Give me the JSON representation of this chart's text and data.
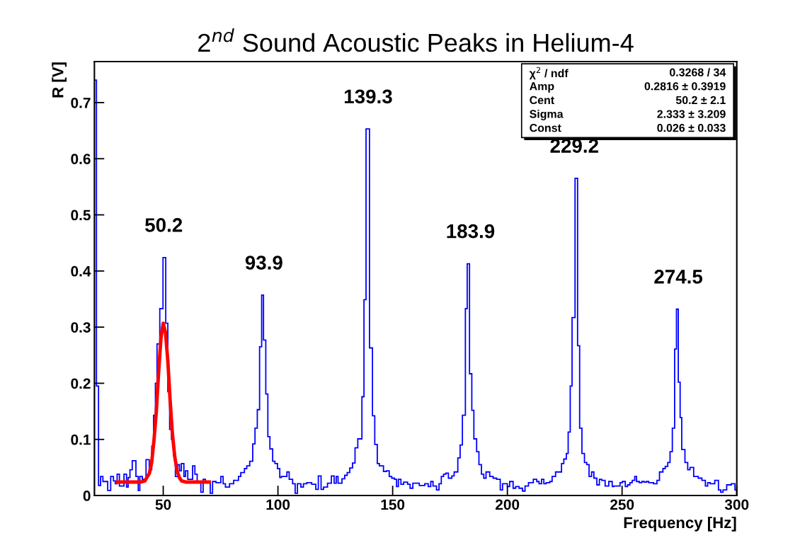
{
  "chart_data": {
    "type": "histogram",
    "title": "2$^{nd}$ Sound Acoustic Peaks in Helium-4",
    "xlabel": "Frequency [Hz]",
    "ylabel": "R [V]",
    "xlim": [
      20,
      300
    ],
    "ylim": [
      0,
      0.773
    ],
    "xticks": [
      50,
      100,
      150,
      200,
      250,
      300
    ],
    "yticks": [
      0,
      0.1,
      0.2,
      0.3,
      0.4,
      0.5,
      0.6,
      0.7
    ],
    "grid": false,
    "legend": false,
    "series": [
      {
        "color": "#0000ff",
        "bins": [
          20,
          20.9,
          21.8,
          22.7,
          23.7,
          25.8,
          27.1,
          28.3,
          29.1,
          29.9,
          30.9,
          32.9,
          34.0,
          34.7,
          35.5,
          36.5,
          38.1,
          39.1,
          39.8,
          40.9,
          42.5,
          43.9,
          45.0,
          45.8,
          46.6,
          47.3,
          48.5,
          49.9,
          51.1,
          52.0,
          52.8,
          53.6,
          54.5,
          55.3,
          56.3,
          57.1,
          57.9,
          59.0,
          59.7,
          60.7,
          62.8,
          63.8,
          64.8,
          66.4,
          67.4,
          68.4,
          70.5,
          71.5,
          73.0,
          75.1,
          76.1,
          77.1,
          78.9,
          80.7,
          82.8,
          83.8,
          85.4,
          86.4,
          87.7,
          89.0,
          90.0,
          91.0,
          92.0,
          92.9,
          93.7,
          94.7,
          95.6,
          96.5,
          97.7,
          98.7,
          99.8,
          100.8,
          101.5,
          103.9,
          104.9,
          106.4,
          107.5,
          108.5,
          110.0,
          111.1,
          112.6,
          114.7,
          116.5,
          117.6,
          118.8,
          119.9,
          121.6,
          123.3,
          124.5,
          125.4,
          126.2,
          127.9,
          129.1,
          130.2,
          131.3,
          132.5,
          133.6,
          134.8,
          136.6,
          137.5,
          138.4,
          139.9,
          141.2,
          142.2,
          143.3,
          144.2,
          146.0,
          147.3,
          148.5,
          149.6,
          150.8,
          151.7,
          152.5,
          153.6,
          154.8,
          156.5,
          157.6,
          158.8,
          159.9,
          161.6,
          164.0,
          165.5,
          166.6,
          167.6,
          169.1,
          170.2,
          171.2,
          172.2,
          173.2,
          174.3,
          175.8,
          176.8,
          178.4,
          179.4,
          180.4,
          181.7,
          182.5,
          183.5,
          184.5,
          185.4,
          186.6,
          187.6,
          188.7,
          189.7,
          190.7,
          192.3,
          193.8,
          195.3,
          196.9,
          197.9,
          200.0,
          201.0,
          202.5,
          203.6,
          205.1,
          206.6,
          207.7,
          209.2,
          211.3,
          212.8,
          213.8,
          214.9,
          215.9,
          216.9,
          218.5,
          219.5,
          221.0,
          223.6,
          224.6,
          225.7,
          226.5,
          227.4,
          228.2,
          229.5,
          230.6,
          231.5,
          232.5,
          233.6,
          234.6,
          235.6,
          236.7,
          237.7,
          239.0,
          240.1,
          241.1,
          242.6,
          244.2,
          245.7,
          246.4,
          249.1,
          250.1,
          251.4,
          252.4,
          253.4,
          254.4,
          255.5,
          256.3,
          257.5,
          258.6,
          259.6,
          260.6,
          261.6,
          263.7,
          265.2,
          266.3,
          267.8,
          268.8,
          269.9,
          270.9,
          271.9,
          272.9,
          273.7,
          274.5,
          275.3,
          276.0,
          277.4,
          278.6,
          279.6,
          281.2,
          283.2,
          284.8,
          286.3,
          287.3,
          288.4,
          290.4,
          292.0,
          293.0,
          294.0,
          295.6,
          297.6,
          299.2,
          300
        ],
        "values": [
          0.74,
          0.195,
          0.018,
          0.034,
          0.025,
          0.009,
          0.034,
          0.026,
          0.021,
          0.038,
          0.017,
          0.038,
          0.015,
          0.032,
          0.046,
          0.062,
          0.034,
          0.009,
          0.034,
          0.029,
          0.064,
          0.046,
          0.088,
          0.143,
          0.2,
          0.27,
          0.333,
          0.424,
          0.307,
          0.185,
          0.118,
          0.1,
          0.071,
          0.034,
          0.055,
          0.044,
          0.057,
          0.034,
          0.044,
          0.029,
          0.053,
          0.038,
          0.025,
          0.006,
          0.029,
          0.025,
          0.004,
          0.025,
          0.023,
          0.034,
          0.021,
          0.015,
          0.021,
          0.027,
          0.034,
          0.041,
          0.048,
          0.053,
          0.061,
          0.092,
          0.12,
          0.153,
          0.265,
          0.357,
          0.277,
          0.181,
          0.105,
          0.083,
          0.061,
          0.057,
          0.048,
          0.032,
          0.034,
          0.042,
          0.029,
          0.021,
          0.004,
          0.021,
          0.015,
          0.021,
          0.023,
          0.02,
          0.011,
          0.035,
          0.011,
          0.015,
          0.022,
          0.035,
          0.022,
          0.034,
          0.022,
          0.03,
          0.036,
          0.041,
          0.049,
          0.058,
          0.085,
          0.101,
          0.176,
          0.349,
          0.653,
          0.263,
          0.142,
          0.091,
          0.057,
          0.053,
          0.043,
          0.044,
          0.034,
          0.031,
          0.029,
          0.016,
          0.029,
          0.02,
          0.024,
          0.02,
          0.013,
          0.022,
          0.022,
          0.018,
          0.021,
          0.016,
          0.025,
          0.017,
          0.01,
          0.021,
          0.034,
          0.038,
          0.04,
          0.031,
          0.035,
          0.042,
          0.067,
          0.09,
          0.143,
          0.333,
          0.413,
          0.217,
          0.152,
          0.101,
          0.078,
          0.055,
          0.038,
          0.031,
          0.042,
          0.034,
          0.031,
          0.029,
          0.01,
          0.021,
          0.016,
          0.025,
          0.013,
          0.016,
          0.013,
          0.008,
          0.017,
          0.023,
          0.029,
          0.025,
          0.021,
          0.029,
          0.021,
          0.023,
          0.025,
          0.034,
          0.042,
          0.057,
          0.065,
          0.075,
          0.113,
          0.195,
          0.317,
          0.565,
          0.267,
          0.12,
          0.075,
          0.059,
          0.055,
          0.034,
          0.042,
          0.031,
          0.019,
          0.029,
          0.027,
          0.017,
          0.025,
          0.016,
          0.017,
          0.023,
          0.025,
          0.016,
          0.019,
          0.023,
          0.027,
          0.034,
          0.025,
          0.023,
          0.025,
          0.024,
          0.025,
          0.023,
          0.021,
          0.027,
          0.042,
          0.048,
          0.052,
          0.059,
          0.078,
          0.12,
          0.261,
          0.332,
          0.202,
          0.139,
          0.082,
          0.059,
          0.046,
          0.05,
          0.034,
          0.031,
          0.027,
          0.017,
          0.023,
          0.021,
          0.027,
          0.01,
          0.006,
          0.01,
          0.019,
          0.021,
          0.01
        ]
      },
      {
        "type": "line",
        "color": "#ff0000",
        "x": [
          30,
          40,
          42,
          44,
          45,
          46,
          47,
          48,
          49,
          50,
          51,
          52,
          53,
          54,
          55,
          56,
          57,
          58,
          60,
          70
        ],
        "values": [
          0.024,
          0.024,
          0.026,
          0.04,
          0.06,
          0.1,
          0.15,
          0.22,
          0.28,
          0.307,
          0.29,
          0.24,
          0.17,
          0.11,
          0.07,
          0.045,
          0.032,
          0.026,
          0.024,
          0.024
        ]
      }
    ],
    "annotations": [
      {
        "text": "50.2",
        "x": 50.2,
        "y": 0.424
      },
      {
        "text": "93.9",
        "x": 93.9,
        "y": 0.357
      },
      {
        "text": "139.3",
        "x": 139.3,
        "y": 0.653
      },
      {
        "text": "183.9",
        "x": 183.9,
        "y": 0.413
      },
      {
        "text": "229.2",
        "x": 229.2,
        "y": 0.565
      },
      {
        "text": "274.5",
        "x": 274.5,
        "y": 0.332
      },
      "χ$^{2}$ / ndf",
      "0.3268 / 34",
      "Amp",
      "0.2816 ± 0.3919",
      "Cent",
      "50.2 ± 2.1",
      "Sigma",
      "2.333 ± 3.209",
      "Const",
      "0.026 ± 0.033"
    ]
  }
}
